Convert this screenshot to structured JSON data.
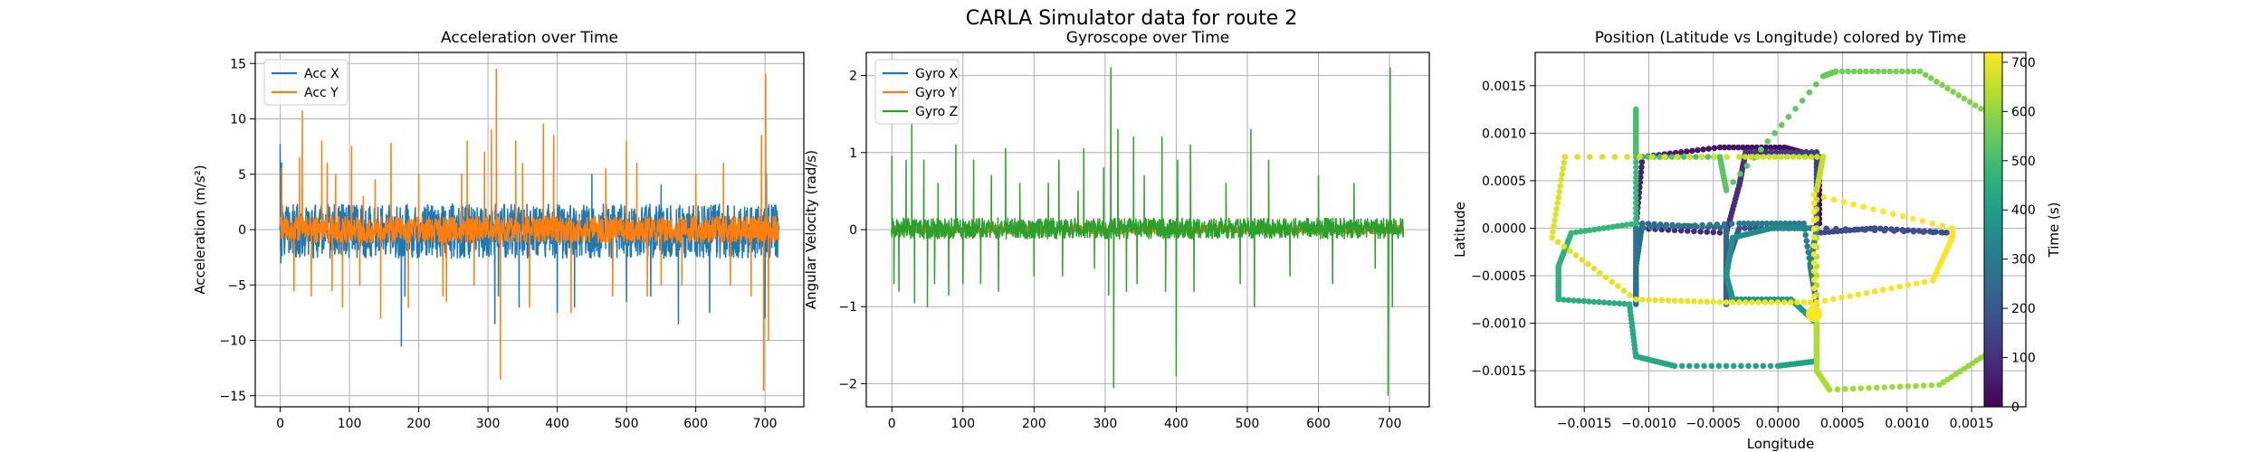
{
  "figure": {
    "suptitle": "CARLA Simulator data for route 2"
  },
  "chart_data": [
    {
      "type": "line",
      "title": "Acceleration over Time",
      "xlabel": "",
      "ylabel": "Acceleration (m/s²)",
      "xlim": [
        -36,
        756
      ],
      "ylim": [
        -16,
        16
      ],
      "xticks": [
        0,
        100,
        200,
        300,
        400,
        500,
        600,
        700
      ],
      "yticks": [
        -15,
        -10,
        -5,
        0,
        5,
        10,
        15
      ],
      "grid": true,
      "legend": "top-left",
      "x_range": [
        0,
        720
      ],
      "series": [
        {
          "name": "Acc X",
          "color": "#1f77b4",
          "band": [
            -2.6,
            2.3
          ],
          "spikes": [
            [
              0,
              7.7
            ],
            [
              1,
              -3
            ],
            [
              2,
              6
            ],
            [
              175,
              -10.5
            ],
            [
              180,
              -6
            ],
            [
              310,
              -8.5
            ],
            [
              315,
              -6
            ],
            [
              345,
              -7
            ],
            [
              400,
              -7.5
            ],
            [
              425,
              -7
            ],
            [
              450,
              5
            ],
            [
              500,
              -6.5
            ],
            [
              535,
              -6
            ],
            [
              550,
              4
            ],
            [
              575,
              -8.5
            ],
            [
              620,
              -7.5
            ],
            [
              700,
              -8
            ],
            [
              702,
              5
            ]
          ]
        },
        {
          "name": "Acc Y",
          "color": "#ff7f0e",
          "band": [
            -1.2,
            1.2
          ],
          "spikes": [
            [
              2,
              5.5
            ],
            [
              20,
              -5.5
            ],
            [
              28,
              6.5
            ],
            [
              32,
              10.7
            ],
            [
              45,
              -6
            ],
            [
              60,
              8
            ],
            [
              68,
              6
            ],
            [
              75,
              -5.5
            ],
            [
              80,
              5
            ],
            [
              90,
              -7
            ],
            [
              103,
              7.5
            ],
            [
              115,
              -5
            ],
            [
              120,
              3
            ],
            [
              137,
              4.5
            ],
            [
              145,
              -8
            ],
            [
              160,
              7.8
            ],
            [
              185,
              -7
            ],
            [
              200,
              5
            ],
            [
              235,
              -6
            ],
            [
              240,
              -6.5
            ],
            [
              262,
              5
            ],
            [
              270,
              8
            ],
            [
              280,
              -5
            ],
            [
              295,
              7
            ],
            [
              305,
              9
            ],
            [
              312,
              14.5
            ],
            [
              318,
              -13.5
            ],
            [
              340,
              8
            ],
            [
              350,
              6
            ],
            [
              360,
              -7
            ],
            [
              380,
              9.5
            ],
            [
              395,
              8.5
            ],
            [
              420,
              -7.5
            ],
            [
              470,
              5.5
            ],
            [
              480,
              -6
            ],
            [
              500,
              8
            ],
            [
              515,
              6
            ],
            [
              530,
              -6
            ],
            [
              550,
              -5
            ],
            [
              580,
              -5
            ],
            [
              600,
              5
            ],
            [
              640,
              6
            ],
            [
              650,
              -5
            ],
            [
              680,
              -6
            ],
            [
              695,
              8.5
            ],
            [
              698,
              -14.5
            ],
            [
              701,
              14
            ],
            [
              705,
              -10
            ]
          ]
        }
      ]
    },
    {
      "type": "line",
      "title": "Gyroscope over Time",
      "xlabel": "",
      "ylabel": "Angular Velocity (rad/s)",
      "xlim": [
        -36,
        756
      ],
      "ylim": [
        -2.3,
        2.3
      ],
      "xticks": [
        0,
        100,
        200,
        300,
        400,
        500,
        600,
        700
      ],
      "yticks": [
        -2,
        -1,
        0,
        1,
        2
      ],
      "grid": true,
      "legend": "top-left",
      "x_range": [
        0,
        720
      ],
      "series": [
        {
          "name": "Gyro X",
          "color": "#1f77b4",
          "band": [
            -0.02,
            0.02
          ],
          "spikes": []
        },
        {
          "name": "Gyro Y",
          "color": "#ff7f0e",
          "band": [
            -0.06,
            0.06
          ],
          "spikes": [
            [
              310,
              0.12
            ],
            [
              400,
              -0.1
            ],
            [
              700,
              0.1
            ]
          ]
        },
        {
          "name": "Gyro Z",
          "color": "#2ca02c",
          "band": [
            -0.12,
            0.15
          ],
          "spikes": [
            [
              0,
              0.95
            ],
            [
              3,
              -0.7
            ],
            [
              10,
              -0.8
            ],
            [
              20,
              0.9
            ],
            [
              28,
              1.4
            ],
            [
              32,
              -0.95
            ],
            [
              45,
              0.9
            ],
            [
              50,
              -1
            ],
            [
              60,
              -0.7
            ],
            [
              65,
              0.6
            ],
            [
              80,
              -0.85
            ],
            [
              90,
              1.1
            ],
            [
              100,
              -0.7
            ],
            [
              115,
              0.9
            ],
            [
              125,
              -0.7
            ],
            [
              140,
              0.7
            ],
            [
              150,
              -0.8
            ],
            [
              160,
              1.05
            ],
            [
              180,
              0.6
            ],
            [
              200,
              -0.6
            ],
            [
              220,
              0.6
            ],
            [
              235,
              0.9
            ],
            [
              240,
              -0.6
            ],
            [
              262,
              0.5
            ],
            [
              270,
              1.05
            ],
            [
              285,
              -0.5
            ],
            [
              298,
              0.8
            ],
            [
              305,
              -0.85
            ],
            [
              308,
              2.1
            ],
            [
              312,
              -2.05
            ],
            [
              318,
              1.3
            ],
            [
              330,
              -0.8
            ],
            [
              340,
              1.2
            ],
            [
              345,
              -0.7
            ],
            [
              355,
              0.7
            ],
            [
              380,
              1.2
            ],
            [
              385,
              -0.8
            ],
            [
              400,
              -1.9
            ],
            [
              402,
              0.9
            ],
            [
              420,
              1.1
            ],
            [
              425,
              -0.8
            ],
            [
              470,
              0.6
            ],
            [
              490,
              -0.7
            ],
            [
              505,
              1.3
            ],
            [
              510,
              -1.0
            ],
            [
              530,
              0.9
            ],
            [
              560,
              -0.6
            ],
            [
              600,
              0.7
            ],
            [
              620,
              -0.7
            ],
            [
              650,
              0.6
            ],
            [
              680,
              -0.5
            ],
            [
              698,
              -2.15
            ],
            [
              701,
              2.1
            ],
            [
              704,
              -1.0
            ]
          ]
        }
      ]
    },
    {
      "type": "scatter",
      "title": "Position (Latitude vs Longitude) colored by Time",
      "xlabel": "Longitude",
      "ylabel": "Latitude",
      "xlim": [
        -0.00188,
        0.00192
      ],
      "ylim": [
        -0.00188,
        0.00185
      ],
      "xticks": [
        -0.0015,
        -0.001,
        -0.0005,
        0.0,
        0.0005,
        0.001,
        0.0015
      ],
      "xticklabels": [
        "−0.0015",
        "−0.0010",
        "−0.0005",
        "0.0000",
        "0.0005",
        "0.0010",
        "0.0015"
      ],
      "yticks": [
        -0.0015,
        -0.001,
        -0.0005,
        0.0,
        0.0005,
        0.001,
        0.0015
      ],
      "yticklabels": [
        "−0.0015",
        "−0.0010",
        "−0.0005",
        "0.0000",
        "0.0005",
        "0.0010",
        "0.0015"
      ],
      "grid": true,
      "colormap": "viridis",
      "colorbar": {
        "label": "Time (s)",
        "min": 0,
        "max": 720,
        "ticks": [
          0,
          100,
          200,
          300,
          400,
          500,
          600,
          700
        ]
      },
      "path": [
        [
          0,
          0.00032,
          5e-05
        ],
        [
          8,
          0.00032,
          0.00075
        ],
        [
          22,
          5e-05,
          0.00085
        ],
        [
          40,
          -0.00045,
          0.00085
        ],
        [
          58,
          -0.00105,
          0.00075
        ],
        [
          72,
          -0.0011,
          0.0
        ],
        [
          85,
          -0.0004,
          -5e-05
        ],
        [
          100,
          -0.0003,
          0.00045
        ],
        [
          112,
          -0.00025,
          0.0008
        ],
        [
          130,
          0.0003,
          0.0008
        ],
        [
          140,
          0.0003,
          0.00025
        ],
        [
          150,
          0.0003,
          -5e-05
        ],
        [
          162,
          0.00075,
          0.0
        ],
        [
          175,
          0.00135,
          -5e-05
        ],
        [
          185,
          0.0003,
          0.0
        ],
        [
          195,
          -0.0003,
          0.0
        ],
        [
          205,
          -0.0004,
          -0.0004
        ],
        [
          212,
          -0.0004,
          -0.0008
        ],
        [
          222,
          -0.0004,
          -0.0004
        ],
        [
          232,
          -0.0004,
          0.0
        ],
        [
          242,
          -0.00105,
          5e-05
        ],
        [
          252,
          -0.0011,
          -0.0004
        ],
        [
          262,
          -0.0011,
          -0.0008
        ],
        [
          272,
          -0.0011,
          -0.0004
        ],
        [
          282,
          -0.0011,
          0.0
        ],
        [
          292,
          -0.0003,
          5e-05
        ],
        [
          302,
          0.0002,
          5e-05
        ],
        [
          312,
          0.0003,
          -0.0008
        ],
        [
          322,
          0.00025,
          -0.0004
        ],
        [
          332,
          0.0003,
          0.0
        ],
        [
          342,
          -5e-05,
          0.0
        ],
        [
          352,
          -0.00035,
          -0.0001
        ],
        [
          362,
          -0.0004,
          -0.0005
        ],
        [
          372,
          -0.00035,
          -0.00075
        ],
        [
          382,
          0.0001,
          -0.00075
        ],
        [
          392,
          0.0003,
          -0.001
        ],
        [
          402,
          0.0003,
          -0.0014
        ],
        [
          412,
          0.0,
          -0.00145
        ],
        [
          422,
          -0.0008,
          -0.00145
        ],
        [
          432,
          -0.0011,
          -0.00135
        ],
        [
          440,
          -0.00115,
          -0.0008
        ],
        [
          450,
          -0.0017,
          -0.00075
        ],
        [
          460,
          -0.0017,
          -0.0004
        ],
        [
          470,
          -0.0016,
          -5e-05
        ],
        [
          480,
          -0.0011,
          5e-05
        ],
        [
          490,
          -0.0011,
          0.0008
        ],
        [
          500,
          -0.0011,
          0.00125
        ],
        [
          512,
          -0.0011,
          0.00075
        ],
        [
          525,
          -0.00045,
          0.00075
        ],
        [
          535,
          -0.0004,
          0.0004
        ],
        [
          545,
          0.00035,
          0.0016
        ],
        [
          558,
          0.00045,
          0.00165
        ],
        [
          572,
          0.0011,
          0.00165
        ],
        [
          585,
          0.0017,
          0.00115
        ],
        [
          598,
          0.0017,
          -0.00125
        ],
        [
          612,
          0.00125,
          -0.00165
        ],
        [
          625,
          0.0004,
          -0.0017
        ],
        [
          632,
          0.0003,
          -0.0015
        ],
        [
          640,
          0.0003,
          -0.001
        ],
        [
          650,
          0.0003,
          0.0004
        ],
        [
          655,
          0.00035,
          0.00075
        ],
        [
          665,
          -0.0003,
          0.00075
        ],
        [
          675,
          -0.00165,
          0.00075
        ],
        [
          685,
          -0.00175,
          -0.0001
        ],
        [
          692,
          -0.0011,
          -0.00075
        ],
        [
          698,
          -0.0004,
          -0.00078
        ],
        [
          704,
          0.0003,
          -0.00078
        ],
        [
          710,
          0.0012,
          -0.00055
        ],
        [
          716,
          0.00135,
          -0.0001
        ],
        [
          719,
          0.00135,
          0.0
        ],
        [
          720,
          0.00028,
          0.00035
        ],
        [
          720,
          0.00028,
          -0.0009
        ]
      ]
    }
  ]
}
